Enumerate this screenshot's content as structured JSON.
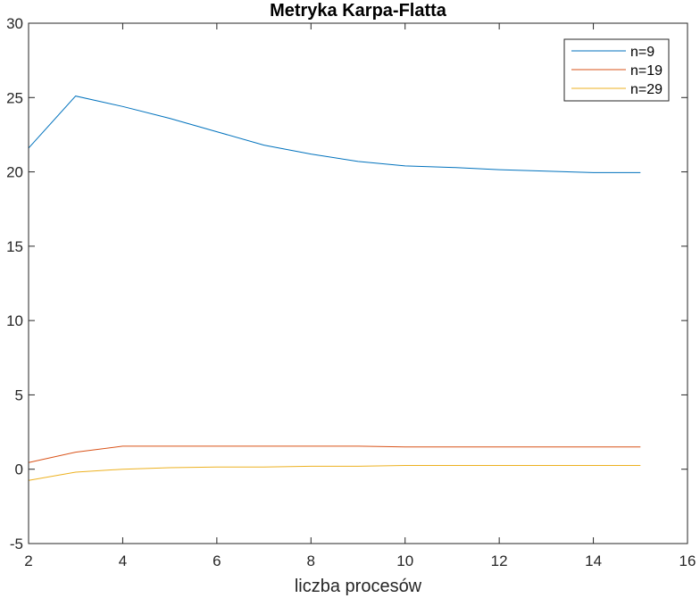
{
  "chart_data": {
    "type": "line",
    "title": "Metryka Karpa-Flatta",
    "xlabel": "liczba procesów",
    "ylabel": "",
    "xlim": [
      2,
      16
    ],
    "ylim": [
      -5,
      30
    ],
    "xticks": [
      "2",
      "4",
      "6",
      "8",
      "10",
      "12",
      "14",
      "16"
    ],
    "yticks": [
      "-5",
      "0",
      "5",
      "10",
      "15",
      "20",
      "25",
      "30"
    ],
    "grid": false,
    "legend_position": "top-right",
    "x": [
      2,
      3,
      4,
      5,
      6,
      7,
      8,
      9,
      10,
      11,
      12,
      13,
      14,
      15
    ],
    "series": [
      {
        "name": "n=9",
        "color": "#0072BD",
        "values": [
          21.6,
          25.1,
          24.4,
          23.6,
          22.7,
          21.8,
          21.2,
          20.7,
          20.4,
          20.3,
          20.15,
          20.05,
          19.95,
          19.95
        ]
      },
      {
        "name": "n=19",
        "color": "#D95319",
        "values": [
          0.45,
          1.15,
          1.55,
          1.55,
          1.55,
          1.55,
          1.55,
          1.55,
          1.5,
          1.5,
          1.5,
          1.5,
          1.5,
          1.5
        ]
      },
      {
        "name": "n=29",
        "color": "#EDB120",
        "values": [
          -0.75,
          -0.2,
          0.0,
          0.1,
          0.15,
          0.15,
          0.2,
          0.2,
          0.25,
          0.25,
          0.25,
          0.25,
          0.25,
          0.25
        ]
      }
    ]
  }
}
